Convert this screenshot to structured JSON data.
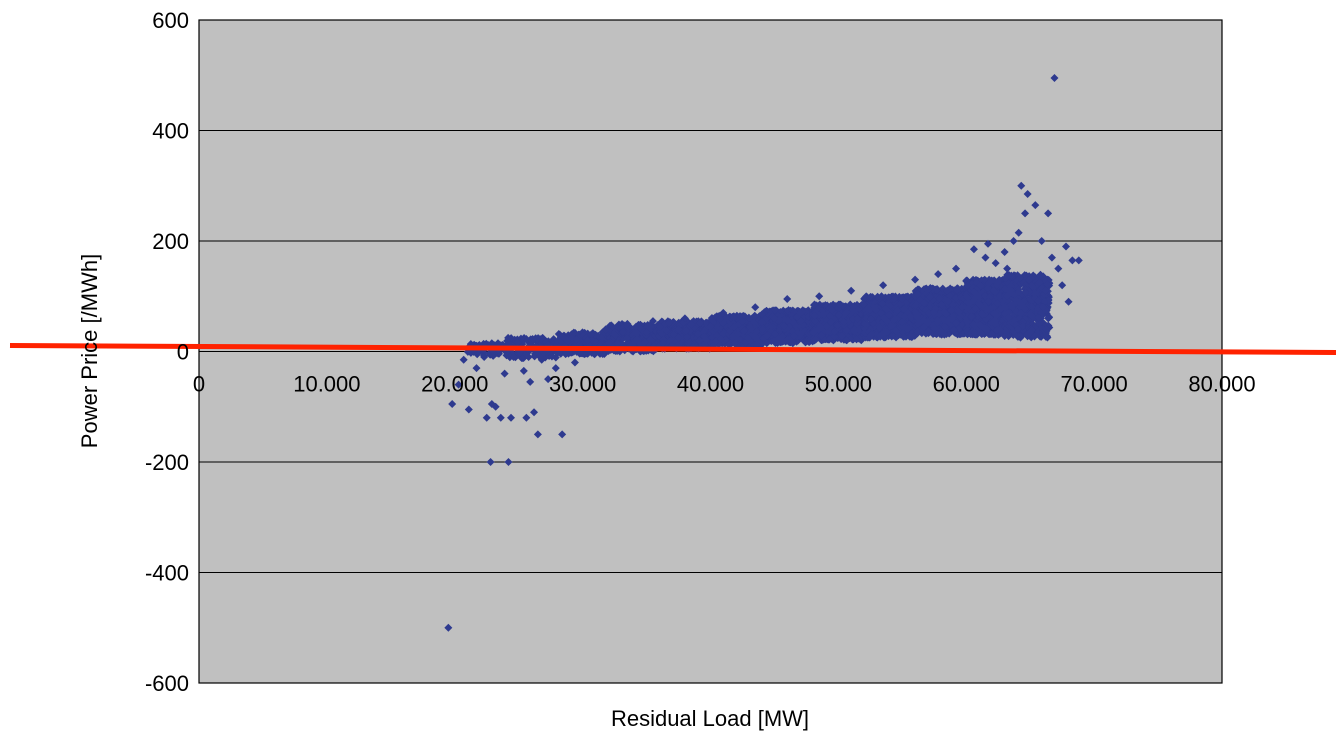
{
  "chart_data": {
    "type": "scatter",
    "xlabel": "Residual Load [MW]",
    "ylabel": "Power Price [/MWh]",
    "xlim": [
      0,
      80000
    ],
    "ylim": [
      -600,
      600
    ],
    "x_ticks": [
      0,
      10000,
      20000,
      30000,
      40000,
      50000,
      60000,
      70000,
      80000
    ],
    "x_tick_labels": [
      "0",
      "10.000",
      "20.000",
      "30.000",
      "40.000",
      "50.000",
      "60.000",
      "70.000",
      "80.000"
    ],
    "y_ticks": [
      600,
      400,
      200,
      0,
      -200,
      -400,
      -600
    ],
    "y_tick_labels": [
      "600",
      "400",
      "200",
      "0",
      "-200",
      "-400",
      "-600"
    ],
    "grid": "horizontal",
    "legend": "none",
    "plot_background": "#c0c0c0",
    "marker_color": "#2e3a8f",
    "marker": "diamond",
    "reference_line": {
      "y": 0,
      "color": "#ff2200"
    },
    "series": [
      {
        "values": [
          [
            19500,
            -500
          ],
          [
            22800,
            -200
          ],
          [
            24200,
            -200
          ],
          [
            26500,
            -150
          ],
          [
            28400,
            -150
          ],
          [
            25600,
            -120
          ],
          [
            22500,
            -120
          ],
          [
            23600,
            -120
          ],
          [
            24400,
            -120
          ],
          [
            19800,
            -95
          ],
          [
            21100,
            -105
          ],
          [
            23200,
            -100
          ],
          [
            26200,
            -110
          ],
          [
            22900,
            -95
          ],
          [
            20300,
            -60
          ],
          [
            21700,
            -30
          ],
          [
            20700,
            -15
          ],
          [
            23900,
            -40
          ],
          [
            25400,
            -35
          ],
          [
            27300,
            -50
          ],
          [
            22300,
            -10
          ],
          [
            24600,
            -10
          ],
          [
            26800,
            -15
          ],
          [
            25900,
            -55
          ],
          [
            27900,
            -30
          ],
          [
            29400,
            -20
          ],
          [
            28600,
            10
          ],
          [
            30400,
            20
          ],
          [
            31800,
            40
          ],
          [
            33500,
            50
          ],
          [
            35500,
            55
          ],
          [
            38000,
            60
          ],
          [
            41000,
            70
          ],
          [
            43500,
            80
          ],
          [
            46000,
            95
          ],
          [
            48500,
            100
          ],
          [
            51000,
            110
          ],
          [
            53500,
            120
          ],
          [
            56000,
            130
          ],
          [
            57800,
            140
          ],
          [
            59200,
            150
          ],
          [
            60600,
            185
          ],
          [
            61500,
            170
          ],
          [
            62300,
            160
          ],
          [
            63000,
            180
          ],
          [
            63700,
            200
          ],
          [
            64100,
            215
          ],
          [
            64600,
            250
          ],
          [
            64300,
            300
          ],
          [
            64800,
            285
          ],
          [
            65400,
            265
          ],
          [
            66400,
            250
          ],
          [
            65900,
            200
          ],
          [
            66700,
            170
          ],
          [
            67200,
            150
          ],
          [
            67800,
            190
          ],
          [
            68300,
            165
          ],
          [
            68800,
            165
          ],
          [
            67500,
            120
          ],
          [
            68000,
            90
          ],
          [
            66900,
            495
          ],
          [
            61700,
            195
          ],
          [
            63200,
            150
          ],
          [
            60100,
            120
          ],
          [
            58500,
            110
          ],
          [
            55000,
            95
          ],
          [
            52000,
            85
          ],
          [
            49500,
            75
          ],
          [
            47000,
            70
          ],
          [
            45000,
            60
          ],
          [
            42500,
            55
          ],
          [
            40000,
            45
          ],
          [
            37500,
            40
          ],
          [
            35000,
            35
          ],
          [
            32500,
            30
          ]
        ]
      }
    ],
    "clusters": [
      {
        "x_min": 21000,
        "x_max": 24000,
        "y_min": -8,
        "y_max": 15,
        "count": 60
      },
      {
        "x_min": 24000,
        "x_max": 28000,
        "y_min": -12,
        "y_max": 25,
        "count": 140
      },
      {
        "x_min": 28000,
        "x_max": 32000,
        "y_min": -5,
        "y_max": 35,
        "count": 220
      },
      {
        "x_min": 32000,
        "x_max": 36000,
        "y_min": 0,
        "y_max": 50,
        "count": 320
      },
      {
        "x_min": 36000,
        "x_max": 40000,
        "y_min": 5,
        "y_max": 55,
        "count": 380
      },
      {
        "x_min": 40000,
        "x_max": 44000,
        "y_min": 10,
        "y_max": 65,
        "count": 420
      },
      {
        "x_min": 44000,
        "x_max": 48000,
        "y_min": 15,
        "y_max": 75,
        "count": 460
      },
      {
        "x_min": 48000,
        "x_max": 52000,
        "y_min": 20,
        "y_max": 85,
        "count": 520
      },
      {
        "x_min": 52000,
        "x_max": 56000,
        "y_min": 25,
        "y_max": 100,
        "count": 600
      },
      {
        "x_min": 56000,
        "x_max": 60000,
        "y_min": 30,
        "y_max": 115,
        "count": 700
      },
      {
        "x_min": 60000,
        "x_max": 63000,
        "y_min": 30,
        "y_max": 130,
        "count": 650
      },
      {
        "x_min": 63000,
        "x_max": 66500,
        "y_min": 25,
        "y_max": 140,
        "count": 500
      }
    ]
  }
}
